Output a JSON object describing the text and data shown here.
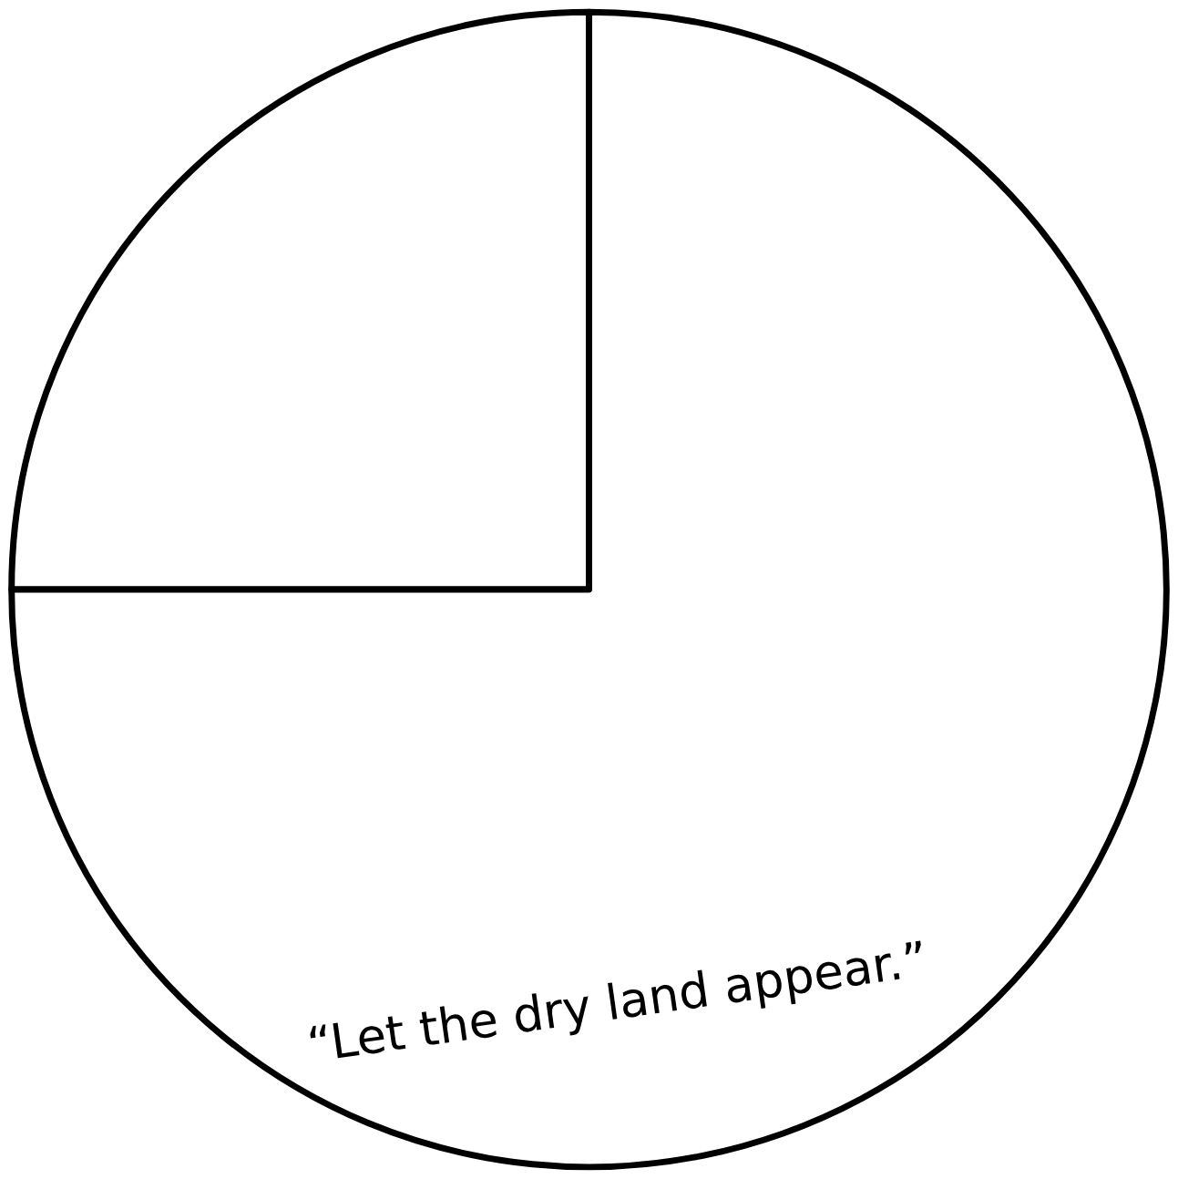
{
  "chart_data": {
    "type": "pie",
    "categories": [
      null,
      "“Let the dry land appear.”"
    ],
    "values": [
      25,
      75
    ],
    "colors": [
      "#ffffff",
      "#ffffff"
    ]
  }
}
